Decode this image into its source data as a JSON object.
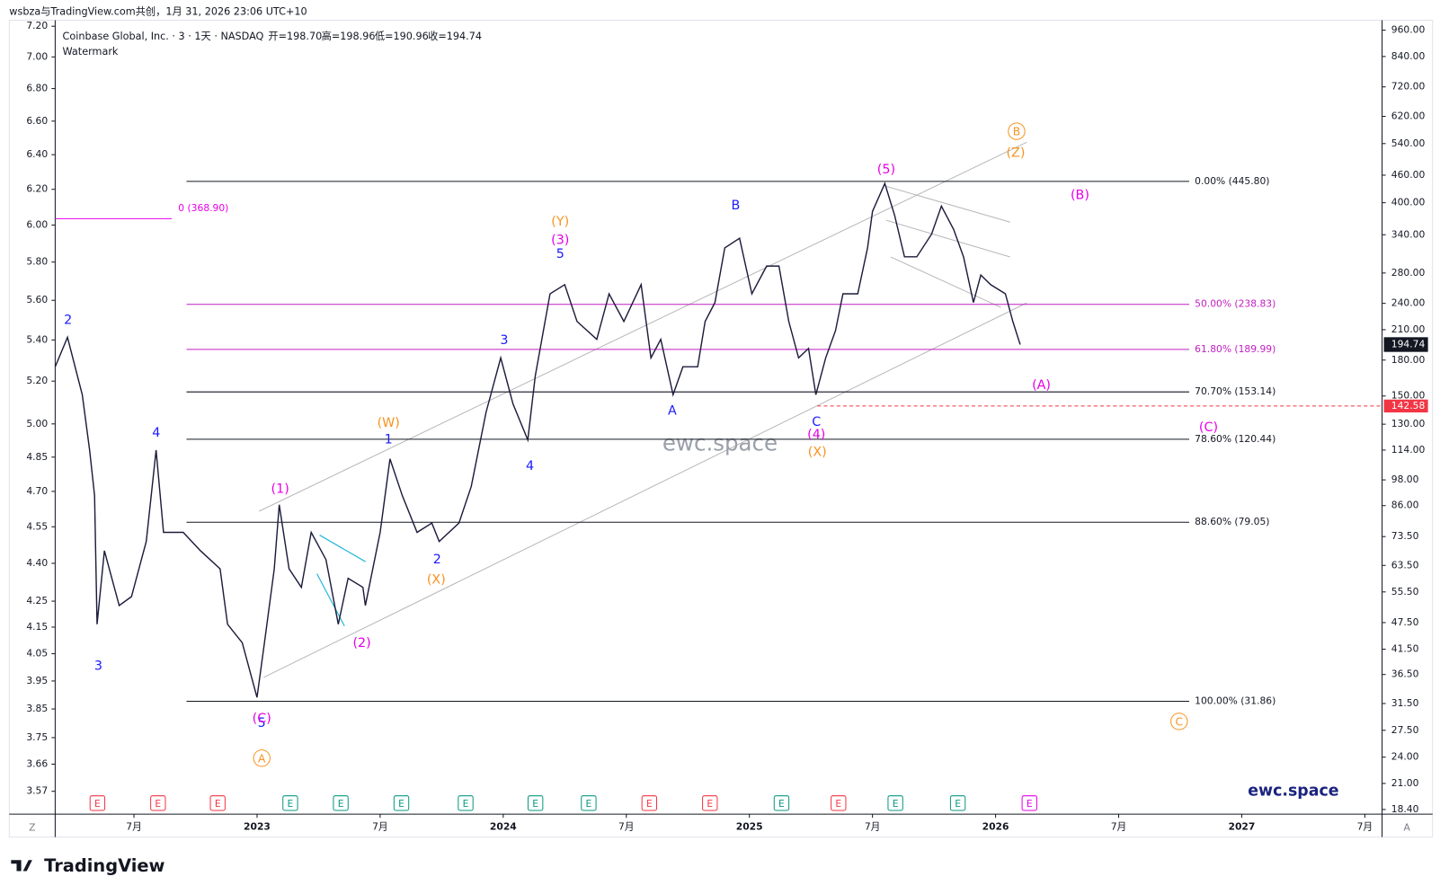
{
  "header": {
    "byline": "wsbza与TradingView.com共创，1月 31, 2026 23:06 UTC+10",
    "symbol": "Coinbase Global, Inc. · 3 · 1天 · NASDAQ",
    "ohlc": [
      "开=198.70",
      "高=198.96",
      "低=190.96",
      "收=194.74"
    ],
    "watermark": "Watermark"
  },
  "chart_data": {
    "type": "line",
    "log_scale": true,
    "x": [
      2022.18,
      2022.23,
      2022.29,
      2022.32,
      2022.34,
      2022.35,
      2022.38,
      2022.44,
      2022.49,
      2022.55,
      2022.59,
      2022.62,
      2022.7,
      2022.77,
      2022.85,
      2022.88,
      2022.94,
      2023.0,
      2023.03,
      2023.07,
      2023.09,
      2023.13,
      2023.18,
      2023.22,
      2023.28,
      2023.33,
      2023.37,
      2023.43,
      2023.44,
      2023.5,
      2023.54,
      2023.59,
      2023.65,
      2023.71,
      2023.74,
      2023.82,
      2023.87,
      2023.93,
      2023.99,
      2024.04,
      2024.1,
      2024.13,
      2024.19,
      2024.25,
      2024.3,
      2024.38,
      2024.43,
      2024.49,
      2024.56,
      2024.6,
      2024.64,
      2024.69,
      2024.73,
      2024.79,
      2024.82,
      2024.86,
      2024.9,
      2024.96,
      2025.01,
      2025.07,
      2025.12,
      2025.16,
      2025.2,
      2025.24,
      2025.27,
      2025.31,
      2025.35,
      2025.38,
      2025.44,
      2025.48,
      2025.5,
      2025.55,
      2025.59,
      2025.63,
      2025.68,
      2025.74,
      2025.78,
      2025.83,
      2025.87,
      2025.91,
      2025.94,
      2025.98,
      2026.04,
      2026.07,
      2026.1
    ],
    "series": [
      {
        "name": "COIN",
        "color": "#1c1c3c",
        "values": [
          174,
          202,
          151,
          114,
          90.5,
          47.1,
          68.4,
          51.8,
          54.2,
          71.7,
          114,
          75.1,
          75.1,
          68.4,
          62.4,
          47.1,
          42.9,
          32.5,
          42.9,
          62.4,
          86.4,
          62.4,
          56.8,
          75.1,
          65.4,
          47.1,
          59.5,
          56.8,
          51.8,
          75.1,
          109,
          90.5,
          75.1,
          78.7,
          71.7,
          78.7,
          94.8,
          138,
          182,
          144,
          120,
          166,
          252,
          264,
          219,
          200,
          252,
          219,
          264,
          182,
          200,
          151,
          174,
          174,
          219,
          241,
          318,
          334,
          252,
          290,
          290,
          219,
          182,
          191,
          151,
          182,
          209,
          252,
          252,
          318,
          383,
          441,
          375,
          304,
          304,
          341,
          393,
          349,
          304,
          241,
          277,
          264,
          252,
          219,
          194.74
        ]
      }
    ],
    "xlim": [
      2022.18,
      2027.57
    ],
    "xticks": [
      {
        "value": 2022.5,
        "label": "7月"
      },
      2023,
      {
        "value": 2023.5,
        "label": "7月"
      },
      2024,
      {
        "value": 2024.5,
        "label": "7月"
      },
      2025,
      {
        "value": 2025.5,
        "label": "7月"
      },
      2026,
      {
        "value": 2026.5,
        "label": "7月"
      },
      2027,
      {
        "value": 2027.5,
        "label": "7月"
      }
    ],
    "ylim": [
      17.97,
      1010
    ],
    "yticks": [
      {
        "value": 960,
        "label": "960.00"
      },
      {
        "value": 840,
        "label": "840.00"
      },
      {
        "value": 720,
        "label": "720.00"
      },
      {
        "value": 620,
        "label": "620.00"
      },
      {
        "value": 540,
        "label": "540.00"
      },
      {
        "value": 460,
        "label": "460.00"
      },
      {
        "value": 400,
        "label": "400.00"
      },
      {
        "value": 340,
        "label": "340.00"
      },
      {
        "value": 280,
        "label": "280.00"
      },
      {
        "value": 240,
        "label": "240.00"
      },
      {
        "value": 210,
        "label": "210.00"
      },
      {
        "value": 180,
        "label": "180.00"
      },
      {
        "value": 150,
        "label": "150.00"
      },
      {
        "value": 130,
        "label": "130.00"
      },
      {
        "value": 114,
        "label": "114.00"
      },
      {
        "value": 98,
        "label": "98.00"
      },
      {
        "value": 86,
        "label": "86.00"
      },
      {
        "value": 73.5,
        "label": "73.50"
      },
      {
        "value": 63.5,
        "label": "63.50"
      },
      {
        "value": 55.5,
        "label": "55.50"
      },
      {
        "value": 47.5,
        "label": "47.50"
      },
      {
        "value": 41.5,
        "label": "41.50"
      },
      {
        "value": 36.5,
        "label": "36.50"
      },
      {
        "value": 31.5,
        "label": "31.50"
      },
      {
        "value": 27.5,
        "label": "27.50"
      },
      {
        "value": 24,
        "label": "24.00"
      },
      {
        "value": 21,
        "label": "21.00"
      },
      {
        "value": 18.4,
        "label": "18.40"
      }
    ],
    "y2lim": [
      3.496,
      7.24
    ],
    "y2ticks": [
      {
        "value": 7.2,
        "label": "7.20"
      },
      {
        "value": 7,
        "label": "7.00"
      },
      {
        "value": 6.8,
        "label": "6.80"
      },
      {
        "value": 6.6,
        "label": "6.60"
      },
      {
        "value": 6.4,
        "label": "6.40"
      },
      {
        "value": 6.2,
        "label": "6.20"
      },
      {
        "value": 6,
        "label": "6.00"
      },
      {
        "value": 5.8,
        "label": "5.80"
      },
      {
        "value": 5.6,
        "label": "5.60"
      },
      {
        "value": 5.4,
        "label": "5.40"
      },
      {
        "value": 5.2,
        "label": "5.20"
      },
      {
        "value": 5,
        "label": "5.00"
      },
      {
        "value": 4.85,
        "label": "4.85"
      },
      {
        "value": 4.7,
        "label": "4.70"
      },
      {
        "value": 4.55,
        "label": "4.55"
      },
      {
        "value": 4.4,
        "label": "4.40"
      },
      {
        "value": 4.25,
        "label": "4.25"
      },
      {
        "value": 4.15,
        "label": "4.15"
      },
      {
        "value": 4.05,
        "label": "4.05"
      },
      {
        "value": 3.95,
        "label": "3.95"
      },
      {
        "value": 3.85,
        "label": "3.85"
      },
      {
        "value": 3.75,
        "label": "3.75"
      },
      {
        "value": 3.66,
        "label": "3.66"
      },
      {
        "value": 3.57,
        "label": "3.57"
      }
    ],
    "last_price": {
      "value": 194.74,
      "label": "194.74",
      "color": "#131722"
    },
    "alert": {
      "value": 142.58,
      "label": "142.58",
      "color": "#f23645"
    },
    "fib_start": {
      "value": 368.9,
      "label": "0 (368.90)",
      "color": "#e600e6"
    },
    "fib_levels": [
      {
        "value": 445.8,
        "label": "0.00% (445.80)",
        "color": "#131722"
      },
      {
        "value": 238.83,
        "label": "50.00% (238.83)",
        "color": "#c21fc2"
      },
      {
        "value": 189.99,
        "label": "61.80% (189.99)",
        "color": "#c21fc2"
      },
      {
        "value": 153.14,
        "label": "70.70% (153.14)",
        "color": "#131722"
      },
      {
        "value": 120.44,
        "label": "78.60% (120.44)",
        "color": "#131722"
      },
      {
        "value": 79.05,
        "label": "88.60% (79.05)",
        "color": "#131722"
      },
      {
        "value": 31.86,
        "label": "100.00% (31.86)",
        "color": "#131722"
      }
    ],
    "waves": [
      {
        "text": "2",
        "color": "#1a1aff"
      },
      {
        "text": "3",
        "color": "#1a1aff"
      },
      {
        "text": "4",
        "color": "#1a1aff"
      },
      {
        "text": "5",
        "color": "#1a1aff"
      },
      {
        "text": "(C)",
        "color": "#e600e6"
      },
      {
        "text": "A",
        "color": "#f7931e",
        "circled": true
      },
      {
        "text": "(1)",
        "color": "#e600e6"
      },
      {
        "text": "(2)",
        "color": "#e600e6"
      },
      {
        "text": "(W)",
        "color": "#f7931e"
      },
      {
        "text": "1",
        "color": "#1a1aff"
      },
      {
        "text": "2",
        "color": "#1a1aff"
      },
      {
        "text": "(X)",
        "color": "#f7931e"
      },
      {
        "text": "3",
        "color": "#1a1aff"
      },
      {
        "text": "4",
        "color": "#1a1aff"
      },
      {
        "text": "(Y)",
        "color": "#f7931e"
      },
      {
        "text": "(3)",
        "color": "#e600e6"
      },
      {
        "text": "5",
        "color": "#1a1aff"
      },
      {
        "text": "A",
        "color": "#1a1aff"
      },
      {
        "text": "B",
        "color": "#1a1aff"
      },
      {
        "text": "C",
        "color": "#1a1aff"
      },
      {
        "text": "(4)",
        "color": "#e600e6"
      },
      {
        "text": "(X)",
        "color": "#f7931e"
      },
      {
        "text": "(5)",
        "color": "#e600e6"
      },
      {
        "text": "B",
        "color": "#f7931e",
        "circled": true
      },
      {
        "text": "(Z)",
        "color": "#f7931e"
      },
      {
        "text": "(B)",
        "color": "#e600e6"
      },
      {
        "text": "(A)",
        "color": "#e600e6"
      },
      {
        "text": "(C)",
        "color": "#e600e6"
      },
      {
        "text": "C",
        "color": "#f7931e",
        "circled": true
      }
    ],
    "earnings": [
      {
        "label": "E",
        "color": "#f23645"
      },
      {
        "label": "E",
        "color": "#f23645"
      },
      {
        "label": "E",
        "color": "#f23645"
      },
      {
        "label": "E",
        "color": "#089981"
      },
      {
        "label": "E",
        "color": "#089981"
      },
      {
        "label": "E",
        "color": "#089981"
      },
      {
        "label": "E",
        "color": "#089981"
      },
      {
        "label": "E",
        "color": "#089981"
      },
      {
        "label": "E",
        "color": "#089981"
      },
      {
        "label": "E",
        "color": "#f23645"
      },
      {
        "label": "E",
        "color": "#f23645"
      },
      {
        "label": "E",
        "color": "#089981"
      },
      {
        "label": "E",
        "color": "#f23645"
      },
      {
        "label": "E",
        "color": "#089981"
      },
      {
        "label": "E",
        "color": "#089981"
      },
      {
        "label": "E",
        "color": "#e600e6"
      }
    ],
    "brand_watermark": "ewc.space",
    "brand_corner": "ewc.space"
  },
  "footer": {
    "logo": "TradingView",
    "left_corner": "Z",
    "right_corner": "A"
  }
}
